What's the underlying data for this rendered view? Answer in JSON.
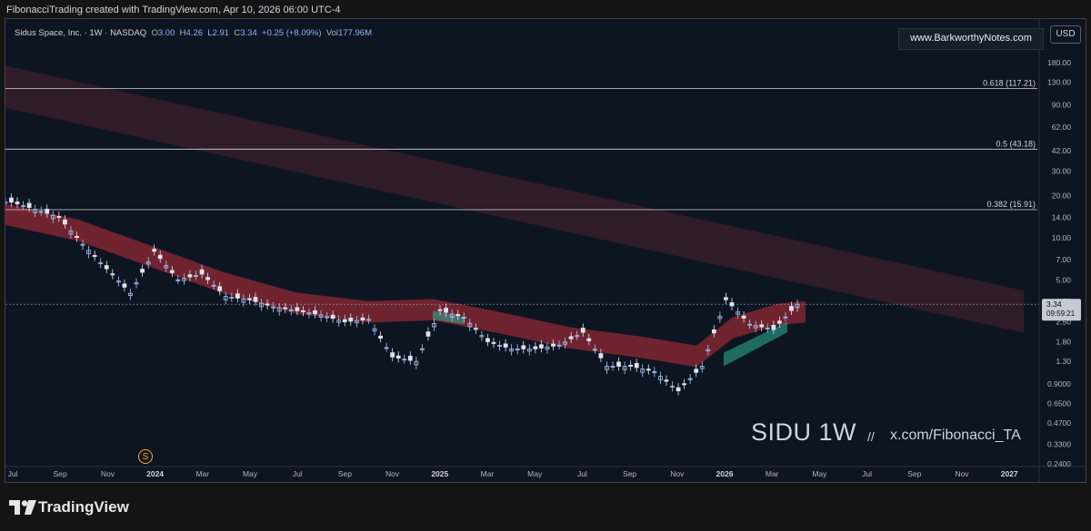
{
  "header": {
    "attribution": "FibonacciTrading created with TradingView.com, Apr 10, 2026 06:00 UTC-4"
  },
  "legend": {
    "title": "Sidus Space, Inc. · 1W · NASDAQ",
    "o_label": "O",
    "o_value": "3.00",
    "h_label": "H",
    "h_value": "4.26",
    "l_label": "L",
    "l_value": "2.91",
    "c_label": "C",
    "c_value": "3.34",
    "change": "+0.25 (+8.09%)",
    "vol_label": "Vol",
    "vol_value": "177.96M"
  },
  "watermark": "www.BarkworthyNotes.com",
  "currency_button": "USD",
  "symbol_tag": "SIDU 1W",
  "slashes": "//",
  "handle": "x.com/Fibonacci_TA",
  "dividend_badge": "S",
  "footer": {
    "brand": "TradingView"
  },
  "colors": {
    "background": "#0e1522",
    "candle_up": "#a7c7f2",
    "candle_down": "#dce3ee",
    "ribbon_red": "#c0303a",
    "ribbon_teal": "#2bb39a",
    "fib_line": "#d0d4dc"
  },
  "chart_data": {
    "type": "candlestick",
    "scale": "log",
    "ylim": [
      0.24,
      200
    ],
    "price_ticks": [
      "180.00",
      "130.00",
      "90.00",
      "62.00",
      "42.00",
      "30.00",
      "20.00",
      "14.00",
      "10.00",
      "7.00",
      "5.00",
      "3.50",
      "2.50",
      "1.80",
      "1.30",
      "0.9000",
      "0.6500",
      "0.4700",
      "0.3300",
      "0.2400"
    ],
    "x_ticks": [
      "Jul",
      "Sep",
      "Nov",
      "2024",
      "Mar",
      "May",
      "Jul",
      "Sep",
      "Nov",
      "2025",
      "Mar",
      "May",
      "Jul",
      "Sep",
      "Nov",
      "2026",
      "Mar",
      "May",
      "Jul",
      "Sep",
      "Nov",
      "2027"
    ],
    "last_price": {
      "value": 3.34,
      "label": "3.34",
      "countdown": "09:59:21"
    },
    "fib_levels": [
      {
        "ratio": 0.618,
        "label": "0.618 (117.21)",
        "price": 117.21
      },
      {
        "ratio": 0.5,
        "label": "0.5 (43.18)",
        "price": 43.18
      },
      {
        "ratio": 0.382,
        "label": "0.382 (15.91)",
        "price": 15.91
      }
    ],
    "series": [
      {
        "name": "price",
        "x": [
          "2023-07",
          "2023-08",
          "2023-09",
          "2023-10",
          "2023-11",
          "2023-12",
          "2024-01",
          "2024-02",
          "2024-03",
          "2024-04",
          "2024-05",
          "2024-06",
          "2024-07",
          "2024-08",
          "2024-09",
          "2024-10",
          "2024-11",
          "2024-12",
          "2025-01",
          "2025-02",
          "2025-03",
          "2025-04",
          "2025-05",
          "2025-06",
          "2025-07",
          "2025-08",
          "2025-09",
          "2025-10",
          "2025-11",
          "2025-12",
          "2026-01",
          "2026-02",
          "2026-03",
          "2026-04"
        ],
        "values": [
          18,
          16,
          14,
          9,
          6,
          4,
          8,
          5,
          5.5,
          3.8,
          3.6,
          3.2,
          3.0,
          2.8,
          2.5,
          2.6,
          1.4,
          1.3,
          3.0,
          2.7,
          1.8,
          1.6,
          1.6,
          1.7,
          2.1,
          1.2,
          1.2,
          1.1,
          0.8,
          1.2,
          3.6,
          2.4,
          2.2,
          3.34
        ]
      }
    ]
  }
}
